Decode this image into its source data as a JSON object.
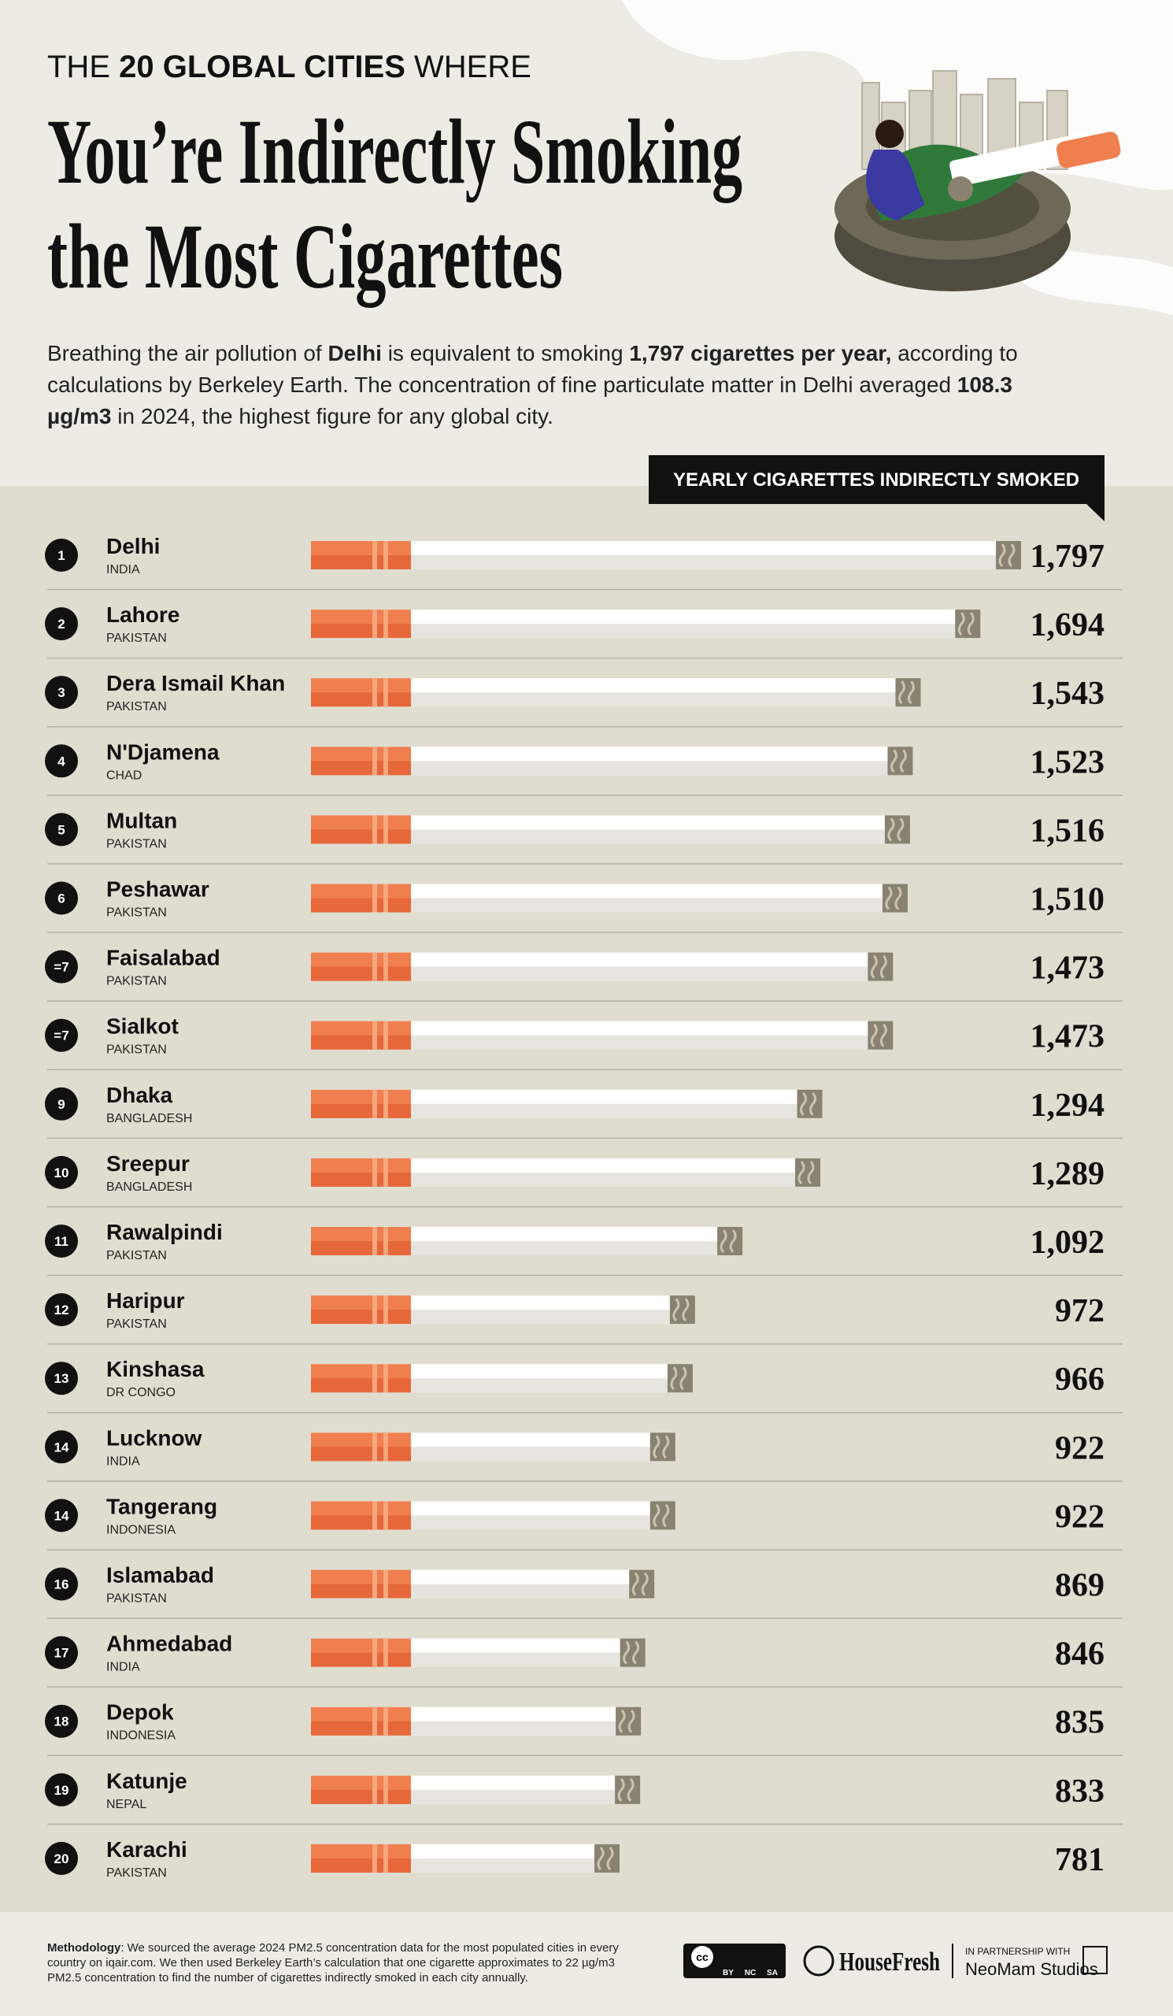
{
  "chart_data": {
    "type": "bar",
    "orientation": "horizontal",
    "kicker": [
      "THE ",
      "20 GLOBAL CITIES",
      " WHERE"
    ],
    "title_lines": [
      "You’re Indirectly Smoking",
      "the Most Cigarettes"
    ],
    "subtitle_lines": [
      [
        {
          "text": "Breathing the air pollution of ",
          "bold": false
        },
        {
          "text": "Delhi",
          "bold": true
        },
        {
          "text": " is equivalent to smoking ",
          "bold": false
        },
        {
          "text": "1,797 cigarettes per year,",
          "bold": true
        },
        {
          "text": " according to",
          "bold": false
        }
      ],
      [
        {
          "text": "calculations by Berkeley Earth. The concentration of fine particulate matter in Delhi averaged ",
          "bold": false
        },
        {
          "text": "108.3",
          "bold": true
        }
      ],
      [
        {
          "text": "µg/m3",
          "bold": true
        },
        {
          "text": " in 2024, the highest figure for any global city.",
          "bold": false
        }
      ]
    ],
    "value_label_title": "YEARLY CIGARETTES INDIRECTLY SMOKED",
    "ranks": [
      "1",
      "2",
      "3",
      "4",
      "5",
      "6",
      "=7",
      "=7",
      "9",
      "10",
      "11",
      "12",
      "13",
      "14",
      "14",
      "16",
      "17",
      "18",
      "19",
      "20"
    ],
    "categories": [
      "Delhi",
      "Lahore",
      "Dera Ismail Khan",
      "N'Djamena",
      "Multan",
      "Peshawar",
      "Faisalabad",
      "Sialkot",
      "Dhaka",
      "Sreepur",
      "Rawalpindi",
      "Haripur",
      "Kinshasa",
      "Lucknow",
      "Tangerang",
      "Islamabad",
      "Ahmedabad",
      "Depok",
      "Katunje",
      "Karachi"
    ],
    "countries": [
      "INDIA",
      "PAKISTAN",
      "PAKISTAN",
      "CHAD",
      "PAKISTAN",
      "PAKISTAN",
      "PAKISTAN",
      "PAKISTAN",
      "BANGLADESH",
      "BANGLADESH",
      "PAKISTAN",
      "PAKISTAN",
      "DR CONGO",
      "INDIA",
      "INDONESIA",
      "PAKISTAN",
      "INDIA",
      "INDONESIA",
      "NEPAL",
      "PAKISTAN"
    ],
    "values": [
      1797,
      1694,
      1543,
      1523,
      1516,
      1510,
      1473,
      1473,
      1294,
      1289,
      1092,
      972,
      966,
      922,
      922,
      869,
      846,
      835,
      833,
      781
    ],
    "value_labels": [
      "1,797",
      "1,694",
      "1,543",
      "1,523",
      "1,516",
      "1,510",
      "1,473",
      "1,473",
      "1,294",
      "1,289",
      "1,092",
      "972",
      "966",
      "922",
      "922",
      "869",
      "846",
      "835",
      "833",
      "781"
    ],
    "color": "#ef7f4f",
    "footer": {
      "methodology_lines": [
        [
          {
            "text": "Methodology",
            "bold": true
          },
          {
            "text": ": We sourced the average 2024 PM2.5 concentration data for the most populated cities in every",
            "bold": false
          }
        ],
        [
          {
            "text": "country on iqair.com. We then used Berkeley Earth’s calculation that one cigarette approximates to 22 µg/m3",
            "bold": false
          }
        ],
        [
          {
            "text": "PM2.5 concentration to find the number of cigarettes indirectly smoked in each city annually.",
            "bold": false
          }
        ]
      ],
      "license": [
        "BY",
        "NC",
        "SA"
      ],
      "brand": "HouseFresh",
      "partner_note": "IN PARTNERSHIP WITH",
      "partner": "NeoMam Studios"
    }
  }
}
